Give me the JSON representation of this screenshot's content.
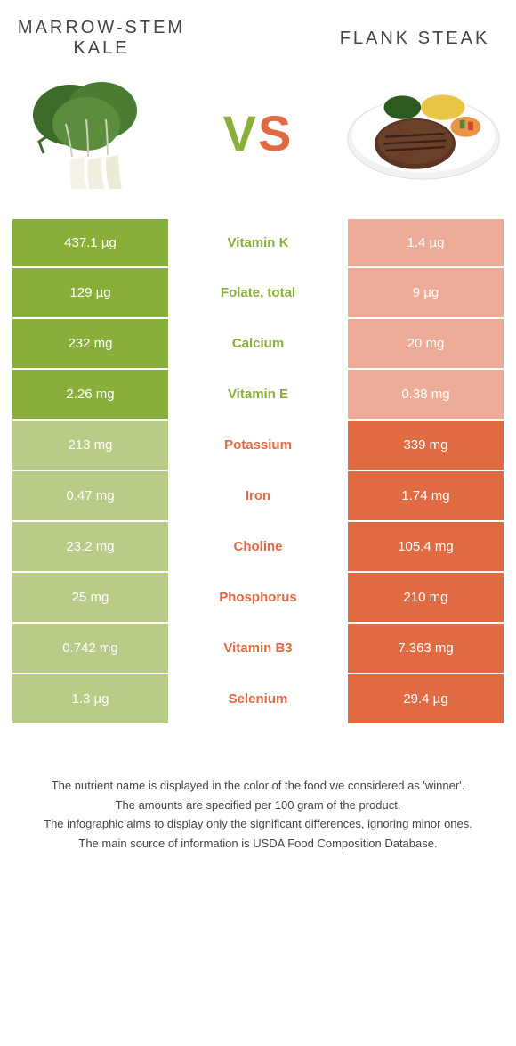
{
  "titles": {
    "left": "Marrow-stem Kale",
    "right": "Flank steak"
  },
  "vs": {
    "v": "V",
    "s": "S"
  },
  "colors": {
    "green": "#8aae3a",
    "green_pale": "#b9cc87",
    "orange": "#e06a42",
    "orange_pale": "#edac97",
    "text": "#444444",
    "white": "#ffffff"
  },
  "rows": [
    {
      "label": "Vitamin K",
      "left": "437.1 µg",
      "right": "1.4 µg",
      "winner": "left"
    },
    {
      "label": "Folate, total",
      "left": "129 µg",
      "right": "9 µg",
      "winner": "left"
    },
    {
      "label": "Calcium",
      "left": "232 mg",
      "right": "20 mg",
      "winner": "left"
    },
    {
      "label": "Vitamin E",
      "left": "2.26 mg",
      "right": "0.38 mg",
      "winner": "left"
    },
    {
      "label": "Potassium",
      "left": "213 mg",
      "right": "339 mg",
      "winner": "right"
    },
    {
      "label": "Iron",
      "left": "0.47 mg",
      "right": "1.74 mg",
      "winner": "right"
    },
    {
      "label": "Choline",
      "left": "23.2 mg",
      "right": "105.4 mg",
      "winner": "right"
    },
    {
      "label": "Phosphorus",
      "left": "25 mg",
      "right": "210 mg",
      "winner": "right"
    },
    {
      "label": "Vitamin B3",
      "left": "0.742 mg",
      "right": "7.363 mg",
      "winner": "right"
    },
    {
      "label": "Selenium",
      "left": "1.3 µg",
      "right": "29.4 µg",
      "winner": "right"
    }
  ],
  "footer": {
    "l1": "The nutrient name is displayed in the color of the food we considered as 'winner'.",
    "l2": "The amounts are specified per 100 gram of the product.",
    "l3": "The infographic aims to display only the significant differences, ignoring minor ones.",
    "l4": "The main source of information is USDA Food Composition Database."
  }
}
